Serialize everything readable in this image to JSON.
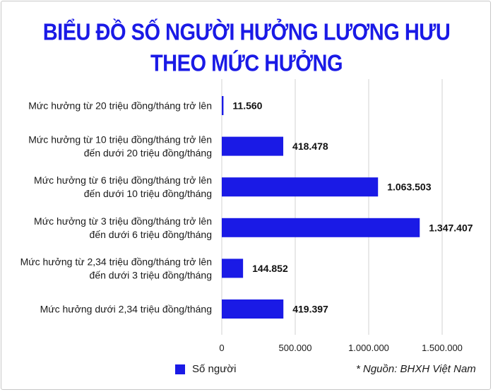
{
  "title_lines": [
    "BIỂU ĐỒ SỐ NGƯỜI HƯỞNG LƯƠNG HƯU",
    "THEO MỨC HƯỞNG"
  ],
  "legend": "Số người",
  "source": "* Nguồn: BHXH Việt Nam",
  "colors": {
    "bar": "#1a1ae6",
    "title": "#1a1ae6",
    "grid": "#d0d0d0"
  },
  "chart_data": {
    "type": "bar",
    "orientation": "horizontal",
    "title": "BIỂU ĐỒ SỐ NGƯỜI HƯỞNG LƯƠNG HƯU THEO MỨC HƯỞNG",
    "categories": [
      [
        "Mức hưởng từ 20 triệu đồng/tháng trở lên"
      ],
      [
        "Mức hưởng từ 10 triệu đồng/tháng trở lên",
        "đến dưới 20 triệu đồng/tháng"
      ],
      [
        "Mức hưởng từ 6 triệu đồng/tháng trở lên",
        "đến dưới 10 triệu đồng/tháng"
      ],
      [
        "Mức hưởng từ 3 triệu đồng/tháng trở lên",
        "đến dưới 6 triệu đồng/tháng"
      ],
      [
        "Mức hưởng từ 2,34 triệu đồng/tháng trở lên",
        "đến dưới 3 triệu đồng/tháng"
      ],
      [
        "Mức hưởng dưới 2,34 triệu đồng/tháng"
      ]
    ],
    "series": [
      {
        "name": "Số người",
        "values": [
          11560,
          418478,
          1063503,
          1347407,
          144852,
          419397
        ]
      }
    ],
    "value_labels": [
      "11.560",
      "418.478",
      "1.063.503",
      "1.347.407",
      "144.852",
      "419.397"
    ],
    "xlim": [
      0,
      1500000
    ],
    "xticks": [
      0,
      500000,
      1000000,
      1500000
    ],
    "xtick_labels": [
      "0",
      "500.000",
      "1.000.000",
      "1.500.000"
    ],
    "grid": "vertical",
    "legend_position": "bottom"
  }
}
